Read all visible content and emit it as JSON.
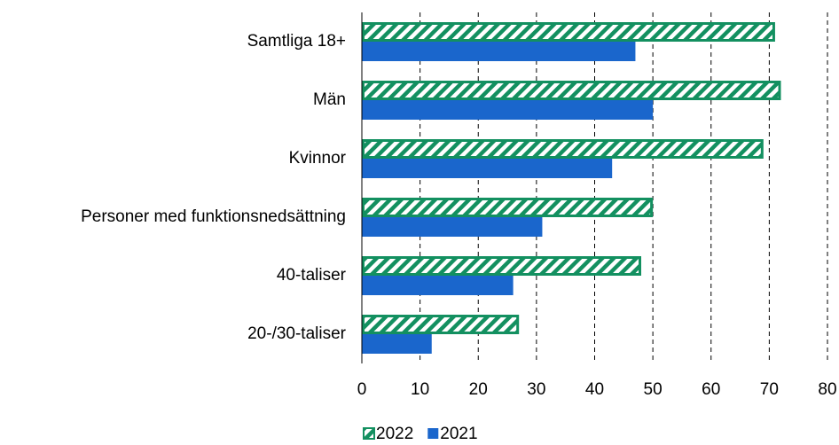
{
  "chart_data": {
    "type": "bar",
    "orientation": "horizontal",
    "categories": [
      "Samtliga 18+",
      "Män",
      "Kvinnor",
      "Personer med funktionsnedsättning",
      "40-taliser",
      "20-/30-taliser"
    ],
    "series": [
      {
        "name": "2022",
        "color": "#139060",
        "pattern": "diagonal-stripes",
        "values": [
          71,
          72,
          69,
          50,
          48,
          27
        ]
      },
      {
        "name": "2021",
        "color": "#1a66cc",
        "values": [
          47,
          50,
          43,
          31,
          26,
          12
        ]
      }
    ],
    "xlim": [
      0,
      80
    ],
    "xticks": [
      0,
      10,
      20,
      30,
      40,
      50,
      60,
      70,
      80
    ],
    "grid": true,
    "legend": "bottom"
  }
}
